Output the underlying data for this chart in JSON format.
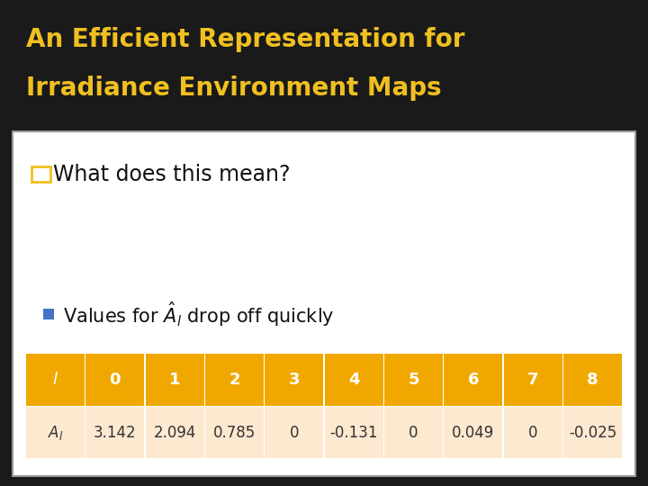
{
  "title_line1": "An Efficient Representation for",
  "title_line2": "Irradiance Environment Maps",
  "title_bg": "#1a1a1a",
  "title_color": "#f0c020",
  "title_fontsize": 20,
  "content_bg": "#ffffff",
  "bullet1_text": "What does this mean?",
  "bullet1_sq_color": "#f0c020",
  "bullet2_sq_color": "#4472c4",
  "table_header_bg": "#f0a800",
  "table_header_text": "#ffffff",
  "table_data_bg": "#fde8d0",
  "table_data_text": "#333333",
  "table_cols": [
    "l",
    "0",
    "1",
    "2",
    "3",
    "4",
    "5",
    "6",
    "7",
    "8"
  ],
  "table_values": [
    "3.142",
    "2.094",
    "0.785",
    "0",
    "-0.131",
    "0",
    "0.049",
    "0",
    "-0.025"
  ]
}
